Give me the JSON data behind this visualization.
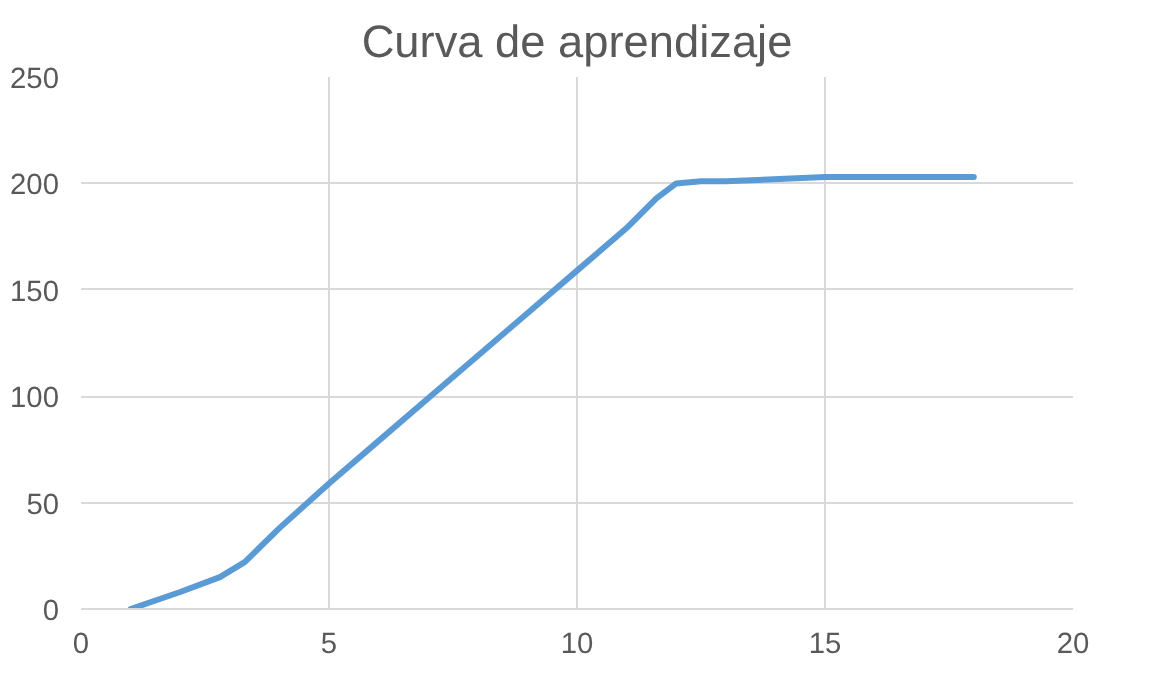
{
  "chart_data": {
    "type": "line",
    "title": "Curva de aprendizaje",
    "series": [
      {
        "color": "#5b9bd5",
        "x": [
          1,
          2,
          2.8,
          3.3,
          4,
          5,
          6,
          7,
          8,
          9,
          10,
          11,
          11.6,
          12,
          12.5,
          13,
          15,
          18
        ],
        "values": [
          0,
          8,
          15,
          22,
          38,
          59,
          79,
          99,
          119,
          139,
          159,
          179,
          193,
          200,
          201,
          201,
          203,
          203
        ]
      }
    ],
    "xlim": [
      0,
      20
    ],
    "xticks": [
      0,
      5,
      10,
      15,
      20
    ],
    "ylim": [
      0,
      250
    ],
    "yticks": [
      0,
      50,
      100,
      150,
      200,
      250
    ],
    "grid": true,
    "marker": "none",
    "line_style": "solid"
  }
}
